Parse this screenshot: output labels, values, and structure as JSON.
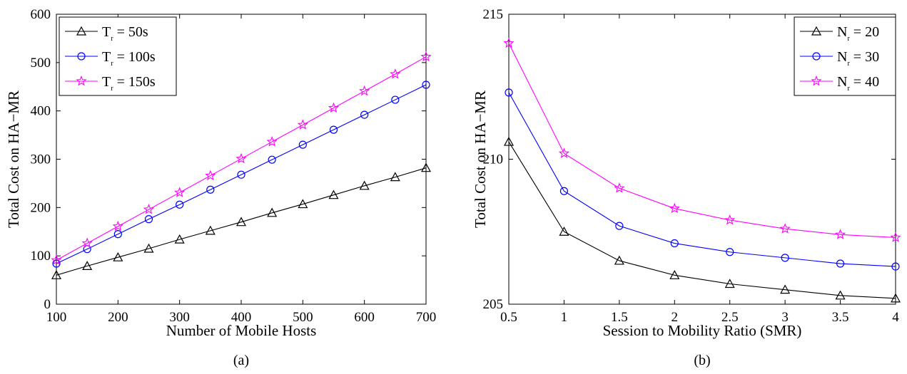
{
  "chart_data": [
    {
      "type": "line",
      "caption": "(a)",
      "xlabel": "Number of Mobile Hosts",
      "ylabel": "Total Cost on HA−MR",
      "xlim": [
        100,
        700
      ],
      "ylim": [
        0,
        600
      ],
      "xticks": [
        "100",
        "200",
        "300",
        "400",
        "500",
        "600",
        "700"
      ],
      "yticks": [
        "0",
        "100",
        "200",
        "300",
        "400",
        "500",
        "600"
      ],
      "grid": false,
      "legend_position": "top-left",
      "x": [
        100,
        150,
        200,
        250,
        300,
        350,
        400,
        450,
        500,
        550,
        600,
        650,
        700
      ],
      "series": [
        {
          "name": "T_r = 50s",
          "legend_main": "T",
          "legend_sub": "r",
          "legend_rest": " = 50s",
          "color": "#000000",
          "marker": "triangle",
          "values": [
            60,
            79,
            97,
            115,
            134,
            152,
            170,
            189,
            207,
            226,
            245,
            263,
            282
          ]
        },
        {
          "name": "T_r = 100s",
          "legend_main": "T",
          "legend_sub": "r",
          "legend_rest": " = 100s",
          "color": "#0000ff",
          "marker": "circle",
          "values": [
            84,
            114,
            145,
            176,
            206,
            237,
            268,
            299,
            330,
            361,
            392,
            423,
            454
          ]
        },
        {
          "name": "T_r = 150s",
          "legend_main": "T",
          "legend_sub": "r",
          "legend_rest": " = 150s",
          "color": "#ff00ff",
          "marker": "star",
          "values": [
            91,
            126,
            161,
            196,
            231,
            266,
            301,
            336,
            371,
            406,
            441,
            476,
            512
          ]
        }
      ]
    },
    {
      "type": "line",
      "caption": "(b)",
      "xlabel": "Session to Mobility Ratio (SMR)",
      "ylabel": "Total Cost on HA−MR",
      "xlim": [
        0.5,
        4
      ],
      "ylim": [
        205,
        215
      ],
      "xticks": [
        "0.5",
        "1",
        "1.5",
        "2",
        "2.5",
        "3",
        "3.5",
        "4"
      ],
      "yticks": [
        "205",
        "210",
        "215"
      ],
      "grid": false,
      "legend_position": "top-right",
      "x": [
        0.5,
        1,
        1.5,
        2,
        2.5,
        3,
        3.5,
        4
      ],
      "series": [
        {
          "name": "N_r = 20",
          "legend_main": "N",
          "legend_sub": "r",
          "legend_rest": " = 20",
          "color": "#000000",
          "marker": "triangle",
          "values": [
            210.6,
            207.5,
            206.5,
            206.0,
            205.7,
            205.5,
            205.3,
            205.2
          ]
        },
        {
          "name": "N_r = 30",
          "legend_main": "N",
          "legend_sub": "r",
          "legend_rest": " = 30",
          "color": "#0000ff",
          "marker": "circle",
          "values": [
            212.3,
            208.9,
            207.7,
            207.1,
            206.8,
            206.6,
            206.4,
            206.3
          ]
        },
        {
          "name": "N_r = 40",
          "legend_main": "N",
          "legend_sub": "r",
          "legend_rest": " = 40",
          "color": "#ff00ff",
          "marker": "star",
          "values": [
            214.0,
            210.2,
            209.0,
            208.3,
            207.9,
            207.6,
            207.4,
            207.3
          ]
        }
      ]
    }
  ]
}
